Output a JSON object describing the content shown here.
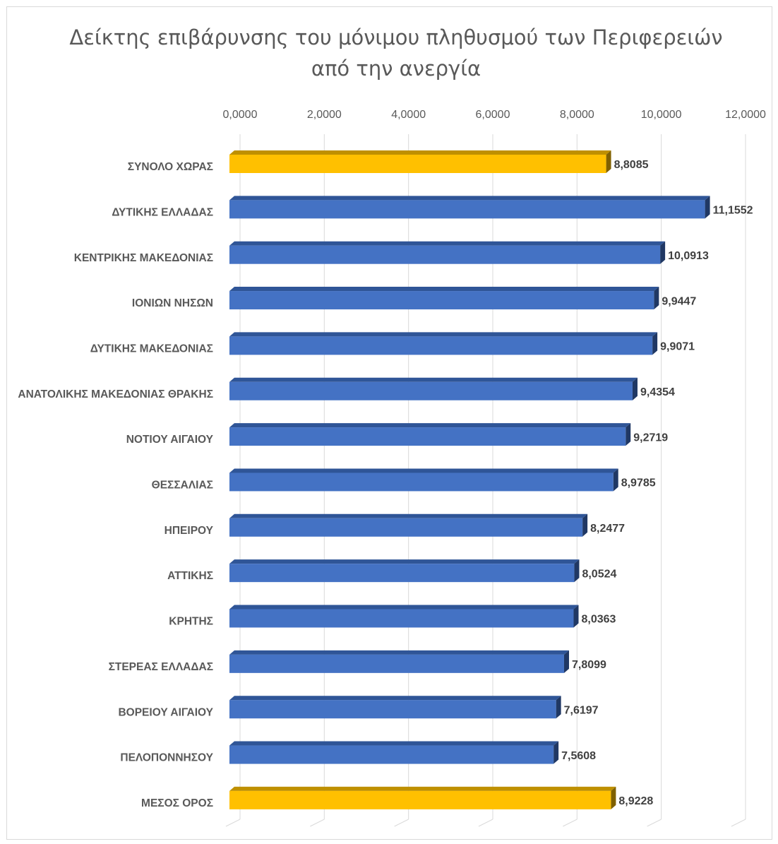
{
  "chart_data": {
    "type": "bar",
    "orientation": "horizontal",
    "title_lines": [
      "Δείκτης επιβάρυνσης του μόνιμου πληθυσμού των Περιφερειών",
      "από την ανεργία"
    ],
    "xlabel": "",
    "ylabel": "",
    "xlim": [
      0,
      12
    ],
    "x_ticks": [
      "0,0000",
      "2,0000",
      "4,0000",
      "6,0000",
      "8,0000",
      "10,0000",
      "12,0000"
    ],
    "x_axis_position": "top",
    "grid": true,
    "legend": "none",
    "categories": [
      "ΣΥΝΟΛΟ ΧΩΡΑΣ",
      "ΔΥΤΙΚΗΣ ΕΛΛΑΔΑΣ",
      "ΚΕΝΤΡΙΚΗΣ ΜΑΚΕΔΟΝΙΑΣ",
      "ΙΟΝΙΩΝ ΝΗΣΩΝ",
      "ΔΥΤΙΚΗΣ ΜΑΚΕΔΟΝΙΑΣ",
      "ΑΝΑΤΟΛΙΚΗΣ ΜΑΚΕΔΟΝΙΑΣ ΘΡΑΚΗΣ",
      "ΝΟΤΙΟΥ ΑΙΓΑΙΟΥ",
      "ΘΕΣΣΑΛΙΑΣ",
      "ΗΠΕΙΡΟΥ",
      "ΑΤΤΙΚΗΣ",
      "ΚΡΗΤΗΣ",
      "ΣΤΕΡΕΑΣ ΕΛΛΑΔΑΣ",
      "ΒΟΡΕΙΟΥ ΑΙΓΑΙΟΥ",
      "ΠΕΛΟΠΟΝΝΗΣΟΥ",
      "ΜΕΣΟΣ ΟΡΟΣ"
    ],
    "values": [
      8.8085,
      11.1552,
      10.0913,
      9.9447,
      9.9071,
      9.4354,
      9.2719,
      8.9785,
      8.2477,
      8.0524,
      8.0363,
      7.8099,
      7.6197,
      7.5608,
      8.9228
    ],
    "value_labels": [
      "8,8085",
      "11,1552",
      "10,0913",
      "9,9447",
      "9,9071",
      "9,4354",
      "9,2719",
      "8,9785",
      "8,2477",
      "8,0524",
      "8,0363",
      "7,8099",
      "7,6197",
      "7,5608",
      "8,9228"
    ],
    "highlighted": [
      true,
      false,
      false,
      false,
      false,
      false,
      false,
      false,
      false,
      false,
      false,
      false,
      false,
      false,
      true
    ],
    "colors": {
      "bar": "#4472c4",
      "bar_top": "#2f5597",
      "bar_side": "#203864",
      "highlight": "#ffc000",
      "highlight_top": "#bf9000",
      "highlight_side": "#7f6000",
      "gridline": "#d9d9d9",
      "tick_text": "#595959",
      "label_text": "#404040"
    }
  }
}
